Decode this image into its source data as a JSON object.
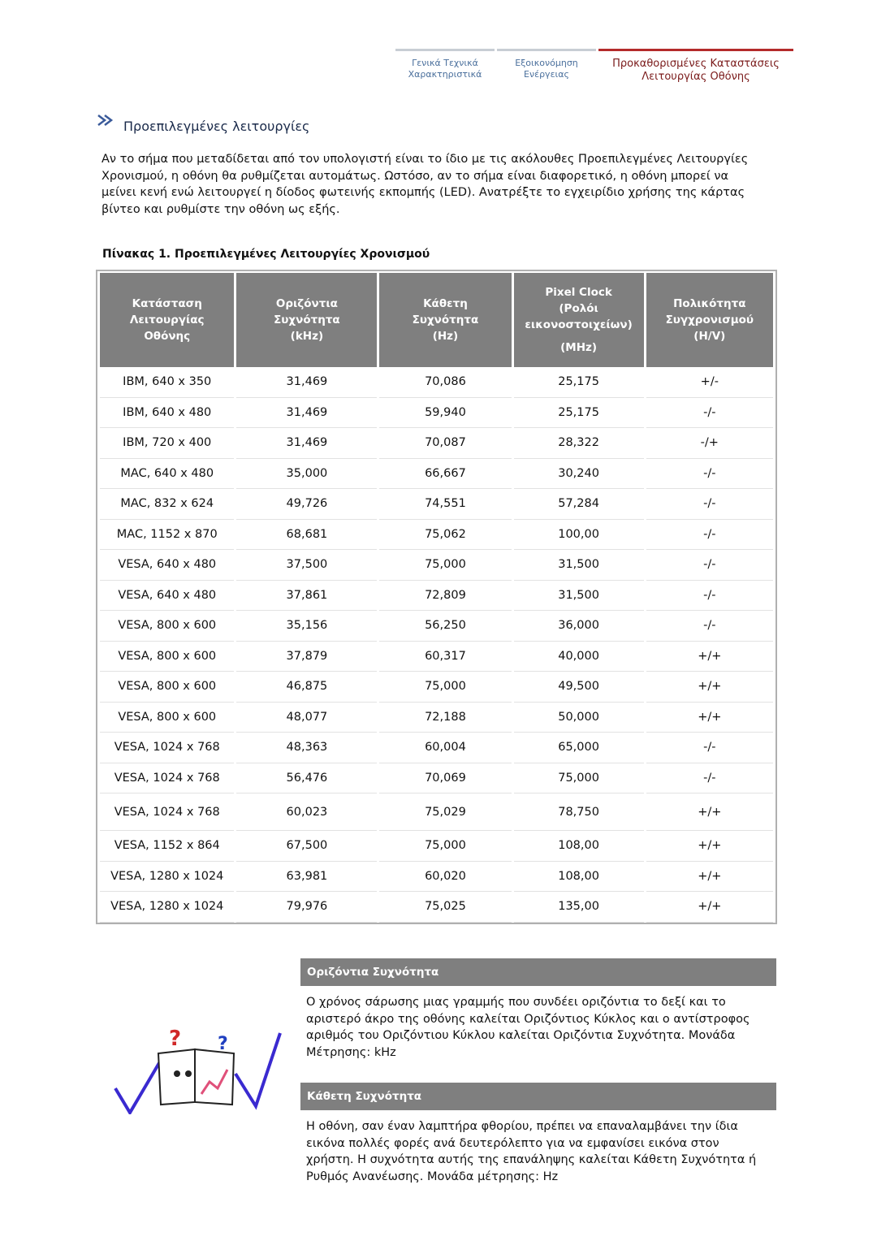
{
  "nav": {
    "tabs": [
      [
        "Γενικά Τεχνικά",
        "Χαρακτηριστικά"
      ],
      [
        "Εξοικονόμηση",
        "Ενέργειας"
      ],
      [
        "Προκαθορισμένες Καταστάσεις",
        "Λειτουργίας Οθόνης"
      ]
    ]
  },
  "section": {
    "title": "Προεπιλεγμένες λειτουργίες",
    "intro": "Αν το σήμα που μεταδίδεται από τον υπολογιστή είναι το ίδιο με τις ακόλουθες Προεπιλεγμένες Λειτουργίες Χρονισμού, η οθόνη θα ρυθμίζεται αυτομάτως. Ωστόσο, αν το σήμα είναι διαφορετικό, η οθόνη μπορεί να μείνει κενή ενώ λειτουργεί η δίοδος φωτεινής εκπομπής (LED). Ανατρέξτε το εγχειρίδιο χρήσης της κάρτας βίντεο και ρυθμίστε την οθόνη ως εξής."
  },
  "table": {
    "caption": "Πίνακας 1. Προεπιλεγμένες Λειτουργίες Χρονισμού",
    "header": [
      [
        "Κατάσταση",
        "Λειτουργίας",
        "Οθόνης"
      ],
      [
        "Οριζόντια",
        "Συχνότητα",
        "(kHz)"
      ],
      [
        "Κάθετη",
        "Συχνότητα",
        "(Hz)"
      ],
      [
        "Pixel Clock",
        "(Ρολόι",
        "εικονοστοιχείων)",
        "(MHz)"
      ],
      [
        "Πολικότητα",
        "Συγχρονισμού",
        "(H/V)"
      ]
    ],
    "rows": [
      [
        "IBM, 640 x 350",
        "31,469",
        "70,086",
        "25,175",
        "+/-"
      ],
      [
        "IBM, 640 x 480",
        "31,469",
        "59,940",
        "25,175",
        "-/-"
      ],
      [
        "IBM, 720 x 400",
        "31,469",
        "70,087",
        "28,322",
        "-/+"
      ],
      [
        "MAC, 640 x 480",
        "35,000",
        "66,667",
        "30,240",
        "-/-"
      ],
      [
        "MAC, 832 x 624",
        "49,726",
        "74,551",
        "57,284",
        "-/-"
      ],
      [
        "MAC, 1152 x 870",
        "68,681",
        "75,062",
        "100,00",
        "-/-"
      ],
      [
        "VESA, 640 x 480",
        "37,500",
        "75,000",
        "31,500",
        "-/-"
      ],
      [
        "VESA, 640 x 480",
        "37,861",
        "72,809",
        "31,500",
        "-/-"
      ],
      [
        "VESA, 800 x 600",
        "35,156",
        "56,250",
        "36,000",
        "-/-"
      ],
      [
        "VESA, 800 x 600",
        "37,879",
        "60,317",
        "40,000",
        "+/+"
      ],
      [
        "VESA, 800 x 600",
        "46,875",
        "75,000",
        "49,500",
        "+/+"
      ],
      [
        "VESA, 800 x 600",
        "48,077",
        "72,188",
        "50,000",
        "+/+"
      ],
      [
        "VESA, 1024 x 768",
        "48,363",
        "60,004",
        "65,000",
        "-/-"
      ],
      [
        "VESA, 1024 x 768",
        "56,476",
        "70,069",
        "75,000",
        "-/-"
      ],
      [
        "VESA, 1024 x 768",
        "60,023",
        "75,029",
        "78,750",
        "+/+"
      ],
      [
        "VESA, 1152 x 864",
        "67,500",
        "75,000",
        "108,00",
        "+/+"
      ],
      [
        "VESA, 1280 x 1024",
        "63,981",
        "60,020",
        "108,00",
        "+/+"
      ],
      [
        "VESA, 1280 x 1024",
        "79,976",
        "75,025",
        "135,00",
        "+/+"
      ]
    ]
  },
  "notes": [
    {
      "title": "Οριζόντια Συχνότητα",
      "text": "Ο χρόνος σάρωσης μιας γραμμής που συνδέει οριζόντια το δεξί και το αριστερό άκρο της οθόνης καλείται Οριζόντιος Κύκλος και ο αντίστροφος αριθμός του Οριζόντιου Κύκλου καλείται Οριζόντια Συχνότητα. Μονάδα Μέτρησης: kHz"
    },
    {
      "title": "Κάθετη Συχνότητα",
      "text": "Η οθόνη, σαν έναν λαμπτήρα φθορίου, πρέπει να επαναλαμβάνει την ίδια εικόνα πολλές φορές ανά δευτερόλεπτο για να εμφανίσει εικόνα στον χρήστη. Η συχνότητα αυτής της επανάληψης καλείται Κάθετη Συχνότητα ή Ρυθμός Ανανέωσης. Μονάδα μέτρησης: Hz"
    }
  ]
}
